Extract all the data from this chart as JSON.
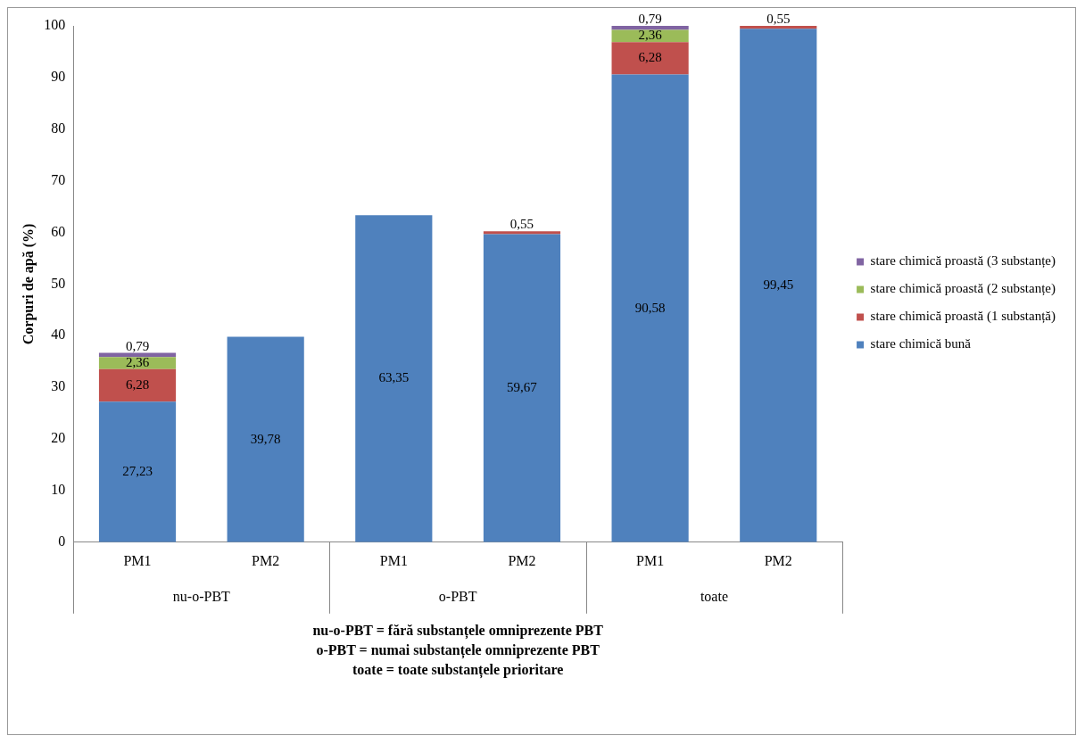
{
  "chart_data": {
    "type": "bar",
    "stacked": true,
    "ylabel": "Corpuri de apă (%)",
    "categories": [
      "PM1",
      "PM2",
      "PM1",
      "PM2",
      "PM1",
      "PM2"
    ],
    "series": [
      {
        "name": "stare chimică bună",
        "color": "#4f81bd",
        "values": [
          27.23,
          39.78,
          63.35,
          59.67,
          90.58,
          99.45
        ],
        "value_labels": [
          "27,23",
          "39,78",
          "63,35",
          "59,67",
          "90,58",
          "99,45"
        ]
      },
      {
        "name": "stare chimică proastă (1 substanță)",
        "color": "#c0504d",
        "values": [
          6.28,
          null,
          null,
          0.55,
          6.28,
          0.55
        ],
        "value_labels": [
          "6,28",
          null,
          null,
          "0,55",
          "6,28",
          "0,55"
        ]
      },
      {
        "name": "stare chimică proastă (2 substanțe)",
        "color": "#9bbb59",
        "values": [
          2.36,
          null,
          null,
          null,
          2.36,
          null
        ],
        "value_labels": [
          "2,36",
          null,
          null,
          null,
          "2,36",
          null
        ]
      },
      {
        "name": "stare chimică proastă (3 substanțe)",
        "color": "#8064a2",
        "values": [
          0.79,
          null,
          null,
          null,
          0.79,
          null
        ],
        "value_labels": [
          "0,79",
          null,
          null,
          null,
          "0,79",
          null
        ]
      }
    ],
    "ylim": [
      0,
      100
    ],
    "yticks": [
      0,
      10,
      20,
      30,
      40,
      50,
      60,
      70,
      80,
      90,
      100
    ],
    "grid": false,
    "legend": "right",
    "annotations": [
      "nu-o-PBT",
      "o-PBT",
      "toate",
      "nu-o-PBT = fără substanțele omniprezente PBT",
      "o-PBT = numai substanțele omniprezente PBT",
      "toate = toate substanțele prioritare"
    ]
  }
}
